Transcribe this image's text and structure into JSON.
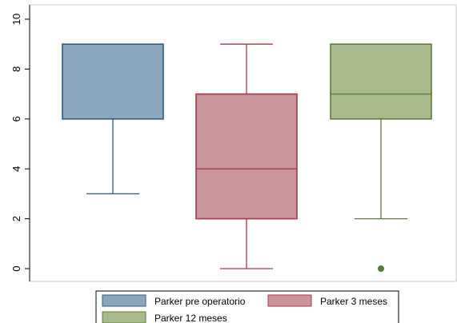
{
  "chart_data": {
    "type": "box",
    "ylim": [
      0,
      10
    ],
    "y_ticks": [
      0,
      2,
      4,
      6,
      8,
      10
    ],
    "grid": false,
    "legend_position": "bottom",
    "series": [
      {
        "name": "Parker pre operatorio",
        "min": 3,
        "q1": 6,
        "median": 9,
        "q3": 9,
        "max": 9,
        "outliers": [],
        "color": "#8ea6bc",
        "edge": "#2f5a84"
      },
      {
        "name": "Parker 3 meses",
        "min": 0,
        "q1": 2,
        "median": 4,
        "q3": 7,
        "max": 9,
        "outliers": [],
        "color": "#c9959b",
        "edge": "#a33a4c"
      },
      {
        "name": "Parker 12 meses",
        "min": 2,
        "q1": 6,
        "median": 7,
        "q3": 9,
        "max": 9,
        "outliers": [
          0
        ],
        "color": "#a8b98c",
        "edge": "#5a7b35"
      }
    ]
  }
}
